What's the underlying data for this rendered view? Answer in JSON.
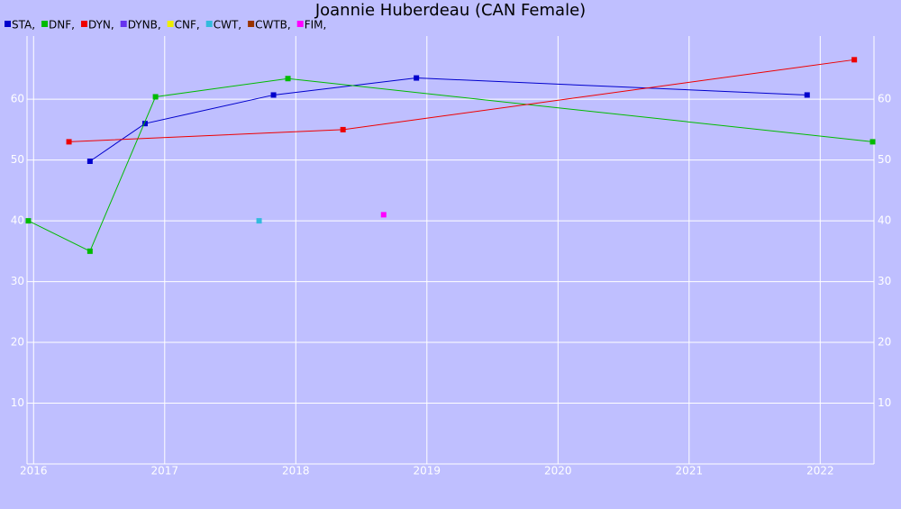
{
  "chart_data": {
    "type": "line",
    "title": "Joannie Huberdeau (CAN Female)",
    "xlim": [
      2015.95,
      2022.41
    ],
    "xticks": [
      2016,
      2017,
      2018,
      2019,
      2020,
      2021,
      2022
    ],
    "ylim": [
      0,
      70.4
    ],
    "yticks": [
      10,
      20,
      30,
      40,
      50,
      60
    ],
    "grid": true,
    "series": [
      {
        "name": "STA,",
        "color": "#0000cc",
        "x": [
          2016.43,
          2016.85,
          2017.83,
          2018.92,
          2021.9
        ],
        "values": [
          49.8,
          56.0,
          60.7,
          63.5,
          60.7
        ]
      },
      {
        "name": "DNF,",
        "color": "#00bb00",
        "x": [
          2015.96,
          2016.43,
          2016.93,
          2017.94,
          2022.4
        ],
        "values": [
          40.0,
          35.0,
          60.4,
          63.4,
          53.0
        ]
      },
      {
        "name": "DYN,",
        "color": "#ee0000",
        "x": [
          2016.27,
          2018.36,
          2022.26
        ],
        "values": [
          53.0,
          55.0,
          66.5
        ]
      },
      {
        "name": "DYNB,",
        "color": "#6633ee",
        "x": [],
        "values": []
      },
      {
        "name": "CNF,",
        "color": "#eeee00",
        "x": [],
        "values": []
      },
      {
        "name": "CWT,",
        "color": "#33bbdd",
        "x": [
          2017.72
        ],
        "values": [
          40.0
        ]
      },
      {
        "name": "CWTB,",
        "color": "#993300",
        "x": [],
        "values": []
      },
      {
        "name": "FIM,",
        "color": "#ff00ff",
        "x": [
          2018.67
        ],
        "values": [
          41.0
        ]
      }
    ]
  }
}
